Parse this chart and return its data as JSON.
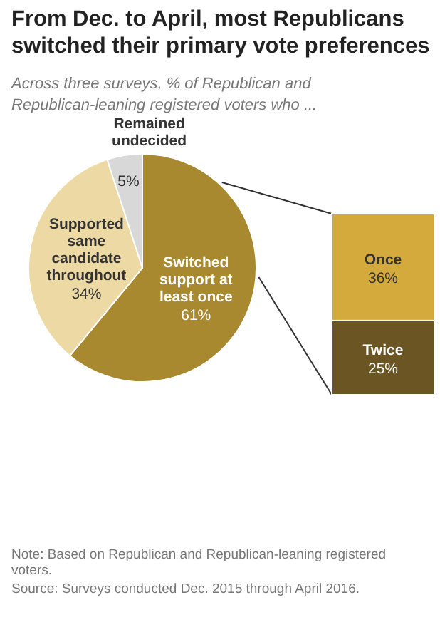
{
  "chart_data": [
    {
      "type": "pie",
      "title": "From Dec. to April, most Republicans switched their primary vote preferences",
      "subtitle": "Across three surveys, % of Republican and Republican-leaning registered voters who ...",
      "categories": [
        "Switched support at least once",
        "Supported same candidate throughout",
        "Remained undecided"
      ],
      "values": [
        61,
        34,
        5
      ],
      "colors": [
        "#a8892f",
        "#ecd9a3",
        "#d8d8d8"
      ],
      "value_labels": [
        "61%",
        "34%",
        "5%"
      ],
      "annotations": [
        "Note: Based on Republican and Republican-leaning registered voters.",
        "Source: Surveys conducted Dec. 2015 through April 2016."
      ]
    },
    {
      "type": "bar",
      "stacked": true,
      "categories": [
        null
      ],
      "series": [
        {
          "name": "Twice",
          "color": "#6b5522",
          "values": [
            25
          ],
          "value_labels": [
            "25%"
          ]
        },
        {
          "name": "Once",
          "color": "#d4aa3d",
          "values": [
            36
          ],
          "value_labels": [
            "36%"
          ]
        }
      ]
    }
  ]
}
